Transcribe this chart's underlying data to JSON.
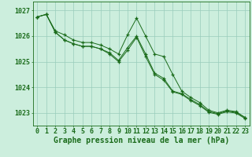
{
  "series": [
    {
      "label": "line_top",
      "values": [
        1026.75,
        1026.85,
        1026.2,
        1026.05,
        1025.85,
        1025.75,
        1025.75,
        1025.65,
        1025.5,
        1025.3,
        1026.05,
        1026.7,
        1026.0,
        1025.3,
        1025.2,
        1024.5,
        1023.85,
        1023.6,
        1023.4,
        1023.1,
        1023.0,
        1023.1,
        1023.05,
        1022.82
      ]
    },
    {
      "label": "line_mid",
      "values": [
        1026.75,
        1026.85,
        1026.15,
        1025.85,
        1025.7,
        1025.6,
        1025.6,
        1025.5,
        1025.35,
        1025.05,
        1025.55,
        1026.0,
        1025.3,
        1024.55,
        1024.35,
        1023.85,
        1023.75,
        1023.52,
        1023.32,
        1023.05,
        1022.97,
        1023.07,
        1023.02,
        1022.82
      ]
    },
    {
      "label": "line_bot",
      "values": [
        1026.75,
        1026.85,
        1026.15,
        1025.85,
        1025.7,
        1025.6,
        1025.6,
        1025.5,
        1025.3,
        1025.0,
        1025.45,
        1025.95,
        1025.2,
        1024.5,
        1024.28,
        1023.82,
        1023.72,
        1023.48,
        1023.28,
        1023.02,
        1022.94,
        1023.04,
        1022.99,
        1022.78
      ]
    }
  ],
  "x_labels": [
    "0",
    "1",
    "2",
    "3",
    "4",
    "5",
    "6",
    "7",
    "8",
    "9",
    "10",
    "11",
    "12",
    "13",
    "14",
    "15",
    "16",
    "17",
    "18",
    "19",
    "20",
    "21",
    "22",
    "23"
  ],
  "y_ticks": [
    1023,
    1024,
    1025,
    1026,
    1027
  ],
  "ylim": [
    1022.5,
    1027.35
  ],
  "xlim": [
    -0.5,
    23.5
  ],
  "line_color": "#1a6b1a",
  "marker": "+",
  "marker_size": 3.5,
  "marker_linewidth": 0.9,
  "linewidth": 0.7,
  "bg_color": "#cceedd",
  "grid_color": "#99ccbb",
  "xlabel": "Graphe pression niveau de la mer (hPa)",
  "xlabel_fontsize": 7,
  "tick_fontsize": 6,
  "fig_width": 3.2,
  "fig_height": 2.0,
  "dpi": 100
}
